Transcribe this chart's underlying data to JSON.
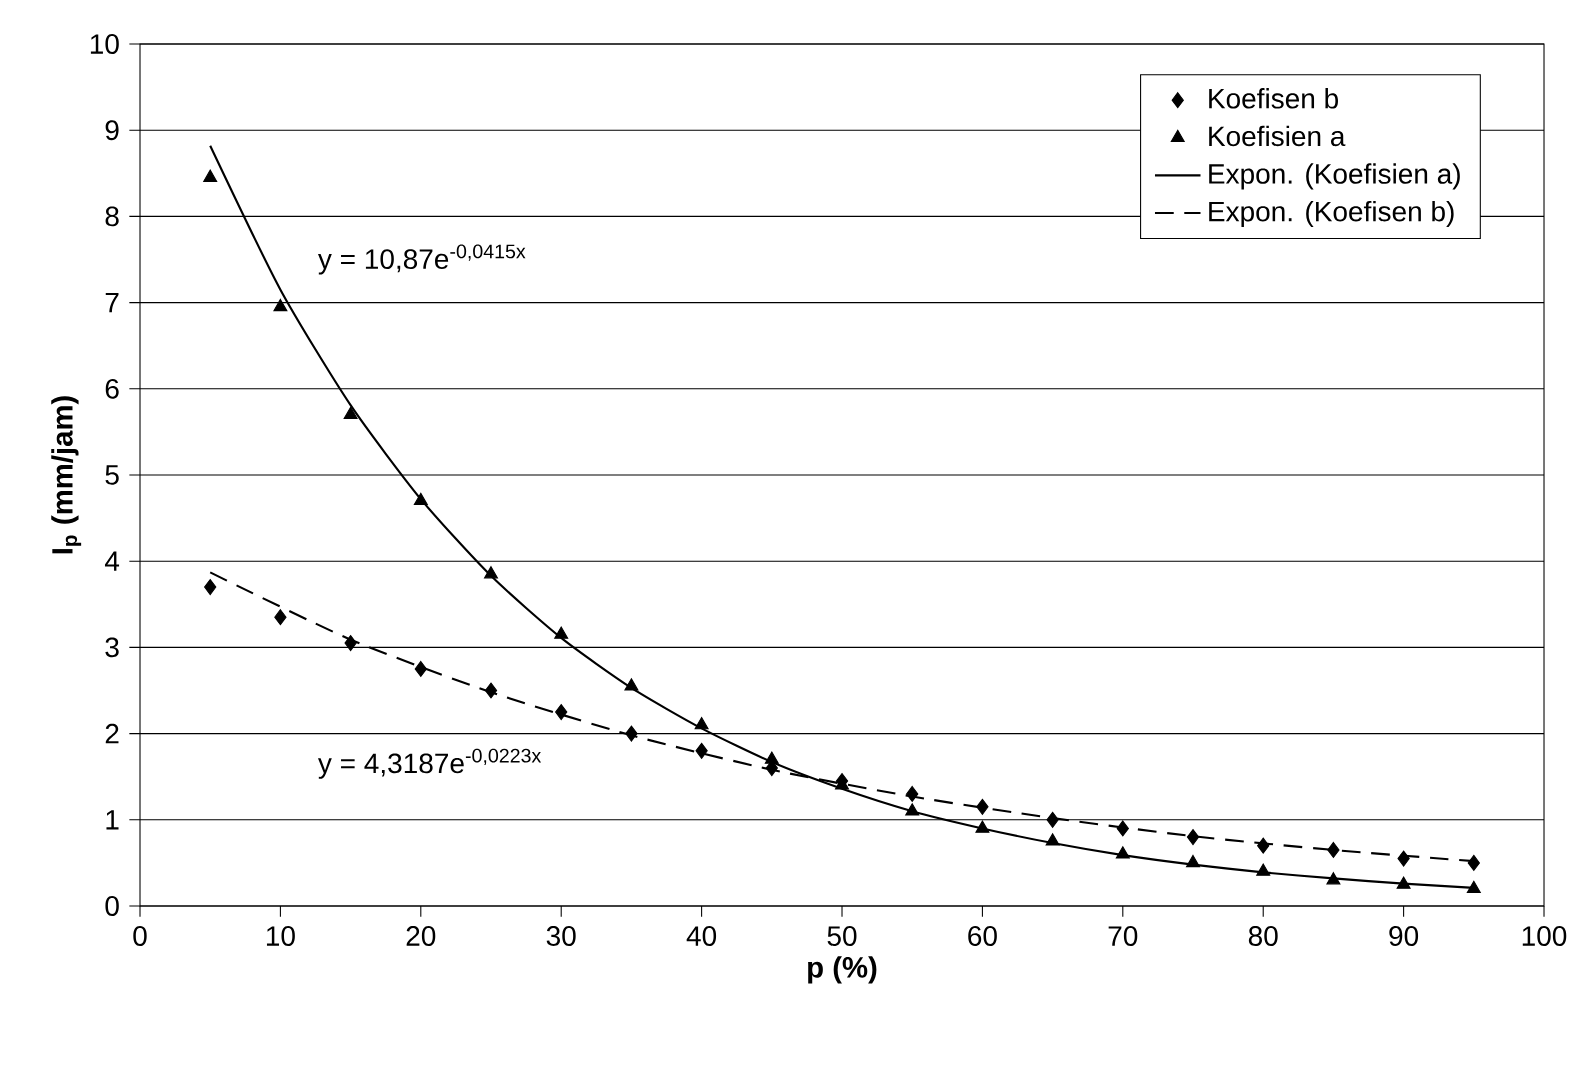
{
  "chart_data": {
    "type": "scatter",
    "xlabel": "p (%)",
    "ylabel": "I$_{p}$ (mm/jam)",
    "annotations": [
      "y = 10,87e$^{-0,0415x}$",
      "y = 4,3187e$^{-0,0223x}$"
    ],
    "x": [
      5,
      10,
      15,
      20,
      25,
      30,
      35,
      40,
      45,
      50,
      55,
      60,
      65,
      70,
      75,
      80,
      85,
      90,
      95
    ],
    "series": [
      {
        "name": "Koefisen b",
        "marker": "diamond",
        "color": "#000000",
        "values": [
          3.7,
          3.35,
          3.05,
          2.75,
          2.5,
          2.25,
          2.0,
          1.8,
          1.6,
          1.45,
          1.3,
          1.15,
          1.0,
          0.9,
          0.8,
          0.7,
          0.65,
          0.55,
          0.5
        ]
      },
      {
        "name": "Koefisien a",
        "marker": "triangle",
        "color": "#000000",
        "values": [
          8.45,
          6.95,
          5.7,
          4.7,
          3.85,
          3.15,
          2.55,
          2.1,
          1.7,
          1.4,
          1.1,
          0.9,
          0.75,
          0.6,
          0.5,
          0.4,
          0.3,
          0.25,
          0.2
        ]
      },
      {
        "name": "Expon. (Koefisien a)",
        "type": "line",
        "line_style": "solid",
        "color": "#000000",
        "x": [
          5,
          10,
          15,
          20,
          25,
          30,
          35,
          40,
          45,
          50,
          55,
          60,
          65,
          70,
          75,
          80,
          85,
          90,
          95
        ],
        "values": [
          8.82,
          7.15,
          5.81,
          4.72,
          3.83,
          3.11,
          2.53,
          2.06,
          1.67,
          1.36,
          1.1,
          0.9,
          0.73,
          0.59,
          0.48,
          0.39,
          0.32,
          0.26,
          0.21
        ]
      },
      {
        "name": "Expon. (Koefisen b)",
        "type": "line",
        "line_style": "dashed",
        "color": "#000000",
        "x": [
          5,
          15,
          25,
          35,
          45,
          55,
          65,
          75,
          85,
          95
        ],
        "values": [
          3.87,
          3.09,
          2.48,
          1.98,
          1.58,
          1.27,
          1.02,
          0.81,
          0.65,
          0.52
        ]
      }
    ],
    "xlim": [
      0,
      100
    ],
    "ylim": [
      0,
      10
    ],
    "xticks": [
      0,
      10,
      20,
      30,
      40,
      50,
      60,
      70,
      80,
      90,
      100
    ],
    "yticks": [
      0,
      1,
      2,
      3,
      4,
      5,
      6,
      7,
      8,
      9,
      10
    ],
    "grid": "y",
    "legend": "top right"
  }
}
